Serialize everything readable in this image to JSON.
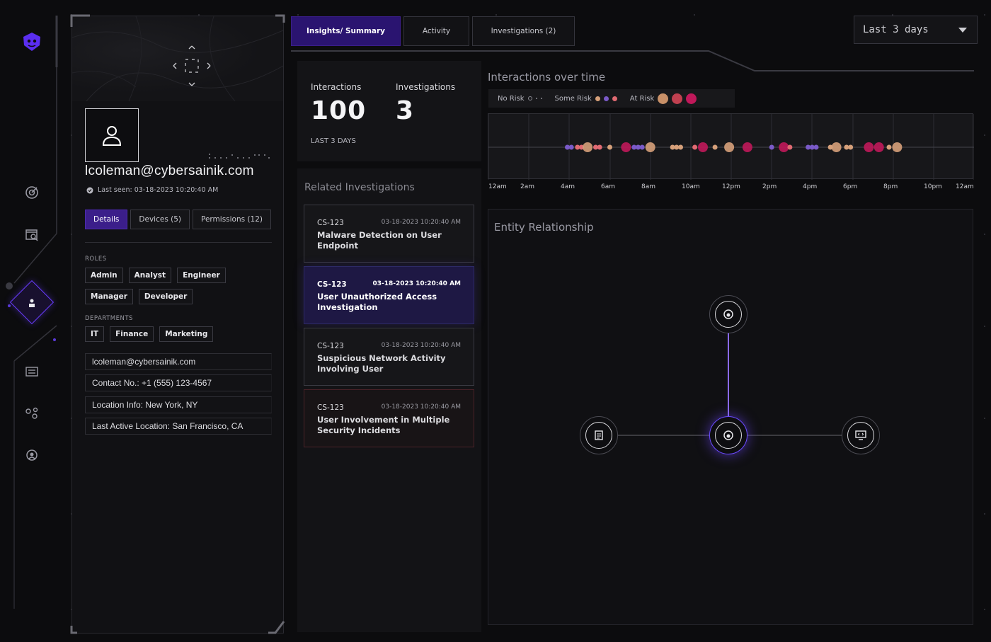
{
  "top_tabs": [
    {
      "label": "Insights/ Summary",
      "active": true
    },
    {
      "label": "Activity",
      "active": false
    },
    {
      "label": "Investigations (2)",
      "active": false
    }
  ],
  "time_range": {
    "selected": "Last 3 days"
  },
  "profile": {
    "email": "lcoleman@cybersainik.com",
    "last_seen": "Last seen: 03-18-2023 10:20:40 AM",
    "tabs": [
      {
        "label": "Details",
        "active": true
      },
      {
        "label": "Devices (5)",
        "active": false
      },
      {
        "label": "Permissions (12)",
        "active": false
      }
    ],
    "roles_label": "ROLES",
    "roles": [
      "Admin",
      "Analyst",
      "Engineer",
      "Manager",
      "Developer"
    ],
    "departments_label": "DEPARTMENTS",
    "departments": [
      "IT",
      "Finance",
      "Marketing"
    ],
    "info": [
      "lcoleman@cybersainik.com",
      "Contact No.: +1 (555) 123-4567",
      "Location Info: New York, NY",
      "Last Active Location: San Francisco, CA"
    ]
  },
  "stats": {
    "interactions_label": "Interactions",
    "interactions_value": "100",
    "investigations_label": "Investigations",
    "investigations_value": "3",
    "period": "LAST 3 DAYS"
  },
  "related": {
    "title": "Related Investigations",
    "items": [
      {
        "id": "CS-123",
        "date": "03-18-2023  10:20:40 AM",
        "title": "Malware Detection on User Endpoint"
      },
      {
        "id": "CS-123",
        "date": "03-18-2023  10:20:40 AM",
        "title": "User Unauthorized Access Investigation"
      },
      {
        "id": "CS-123",
        "date": "03-18-2023  10:20:40 AM",
        "title": "Suspicious Network Activity Involving User"
      },
      {
        "id": "CS-123",
        "date": "03-18-2023  10:20:40 AM",
        "title": "User Involvement in Multiple Security Incidents"
      }
    ]
  },
  "timeline": {
    "title": "Interactions over time",
    "legend": {
      "no_risk": "No Risk",
      "some_risk": "Some Risk",
      "at_risk": "At Risk"
    },
    "x_ticks": [
      "12am",
      "2am",
      "4am",
      "6am",
      "8am",
      "10am",
      "12pm",
      "2pm",
      "4pm",
      "6pm",
      "8pm",
      "10pm",
      "12am"
    ],
    "colors": {
      "no_risk": "#7a5ac8",
      "some_risk": "#e06a72",
      "at_risk": "#d6a07a",
      "high": "#c0185a"
    },
    "events": [
      {
        "hour": 3.9,
        "risk": "no_risk"
      },
      {
        "hour": 4.1,
        "risk": "no_risk"
      },
      {
        "hour": 4.4,
        "risk": "some_risk"
      },
      {
        "hour": 4.6,
        "risk": "some_risk"
      },
      {
        "hour": 4.9,
        "risk": "at_risk",
        "big": true
      },
      {
        "hour": 5.3,
        "risk": "some_risk"
      },
      {
        "hour": 5.5,
        "risk": "some_risk"
      },
      {
        "hour": 6.0,
        "risk": "at_risk"
      },
      {
        "hour": 6.8,
        "risk": "high",
        "big": true
      },
      {
        "hour": 7.2,
        "risk": "no_risk"
      },
      {
        "hour": 7.4,
        "risk": "no_risk"
      },
      {
        "hour": 7.6,
        "risk": "no_risk"
      },
      {
        "hour": 8.0,
        "risk": "at_risk",
        "big": true
      },
      {
        "hour": 9.1,
        "risk": "at_risk"
      },
      {
        "hour": 9.3,
        "risk": "at_risk"
      },
      {
        "hour": 9.5,
        "risk": "at_risk"
      },
      {
        "hour": 10.2,
        "risk": "some_risk"
      },
      {
        "hour": 10.6,
        "risk": "high",
        "big": true
      },
      {
        "hour": 11.2,
        "risk": "at_risk"
      },
      {
        "hour": 11.9,
        "risk": "at_risk",
        "big": true
      },
      {
        "hour": 12.8,
        "risk": "high",
        "big": true
      },
      {
        "hour": 14.0,
        "risk": "no_risk"
      },
      {
        "hour": 14.6,
        "risk": "high",
        "big": true
      },
      {
        "hour": 14.9,
        "risk": "some_risk"
      },
      {
        "hour": 15.8,
        "risk": "no_risk"
      },
      {
        "hour": 16.0,
        "risk": "no_risk"
      },
      {
        "hour": 16.2,
        "risk": "no_risk"
      },
      {
        "hour": 16.9,
        "risk": "at_risk"
      },
      {
        "hour": 17.2,
        "risk": "at_risk",
        "big": true
      },
      {
        "hour": 17.7,
        "risk": "at_risk"
      },
      {
        "hour": 17.9,
        "risk": "at_risk"
      },
      {
        "hour": 18.8,
        "risk": "high",
        "big": true
      },
      {
        "hour": 19.3,
        "risk": "high",
        "big": true
      },
      {
        "hour": 19.8,
        "risk": "at_risk"
      },
      {
        "hour": 20.2,
        "risk": "at_risk",
        "big": true
      }
    ]
  },
  "entity": {
    "title": "Entity Relationship",
    "nodes": [
      {
        "name": "user-node-top",
        "icon": "user-icon"
      },
      {
        "name": "user-node-center",
        "icon": "user-icon"
      },
      {
        "name": "document-node",
        "icon": "document-icon"
      },
      {
        "name": "device-node",
        "icon": "monitor-icon"
      }
    ]
  },
  "nav": {
    "items": [
      "logo-icon",
      "target-icon",
      "search-window-icon",
      "user-icon",
      "list-icon",
      "share-icon",
      "shield-user-icon"
    ]
  }
}
